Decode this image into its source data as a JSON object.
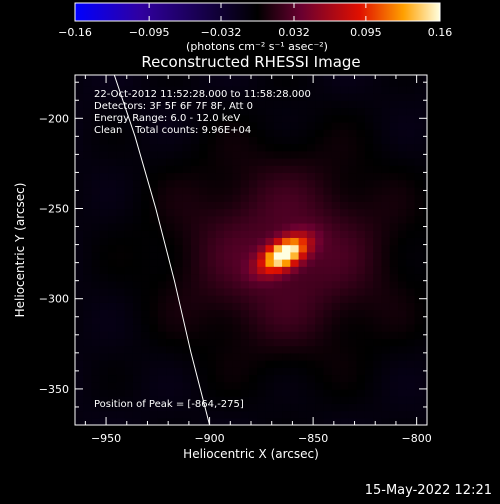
{
  "chart_data": {
    "type": "heatmap",
    "title": "Reconstructed RHESSI Image",
    "xlabel": "Heliocentric X (arcsec)",
    "ylabel": "Heliocentric Y (arcsec)",
    "xlim": [
      -965,
      -795
    ],
    "ylim": [
      -370,
      -176
    ],
    "x_ticks": [
      -950,
      -900,
      -850,
      -800
    ],
    "x_tick_labels": [
      "−950",
      "−900",
      "−850",
      "−800"
    ],
    "y_ticks": [
      -200,
      -250,
      -300,
      -350
    ],
    "y_tick_labels": [
      "−200",
      "−250",
      "−300",
      "−350"
    ],
    "colorbar": {
      "range": [
        -0.16,
        0.16
      ],
      "tick_values": [
        -0.16,
        -0.095,
        -0.032,
        0.032,
        0.095,
        0.16
      ],
      "tick_labels": [
        "−0.16",
        "−0.095",
        "−0.032",
        "0.032",
        "0.095",
        "0.16"
      ],
      "unit_label": "(photons cm⁻² s⁻¹ asec⁻²)"
    },
    "source": {
      "center": [
        -864,
        -275
      ],
      "peak_value": 0.16,
      "sigma_major_arcsec": 9,
      "sigma_minor_arcsec": 5,
      "tilt_deg": 38,
      "halo_value": 0.04,
      "halo_sigma_arcsec": 40
    },
    "limb_curve": [
      [
        -946,
        -176
      ],
      [
        -936,
        -210
      ],
      [
        -926,
        -250
      ],
      [
        -917,
        -290
      ],
      [
        -909,
        -330
      ],
      [
        -900,
        -370
      ]
    ],
    "annotations": {
      "time_range": "22-Oct-2012 11:52:28.000 to 11:58:28.000",
      "detectors": "Detectors: 3F 5F 6F 7F 8F, Att 0",
      "energy_range": "Energy Range: 6.0 - 12.0 keV",
      "clean_counts": "Clean    Total counts: 9.96E+04",
      "peak_position": "Position of Peak = [-864,-275]"
    }
  },
  "footer_timestamp": "15-May-2022 12:21"
}
